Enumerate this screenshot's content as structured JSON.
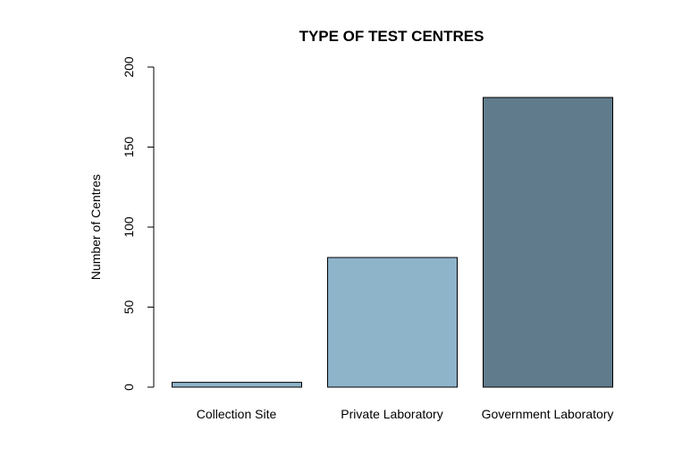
{
  "chart_data": {
    "type": "bar",
    "title": "TYPE OF TEST CENTRES",
    "xlabel": "",
    "ylabel": "Number of Centres",
    "categories": [
      "Collection Site",
      "Private Laboratory",
      "Government Laboratory"
    ],
    "values": [
      3,
      81,
      181
    ],
    "colors": [
      "#8eb4ca",
      "#8eb4ca",
      "#607b8b"
    ],
    "ylim": [
      0,
      200
    ],
    "yticks": [
      "0",
      "50",
      "100",
      "150",
      "200"
    ],
    "grid": false,
    "legend": "none"
  }
}
